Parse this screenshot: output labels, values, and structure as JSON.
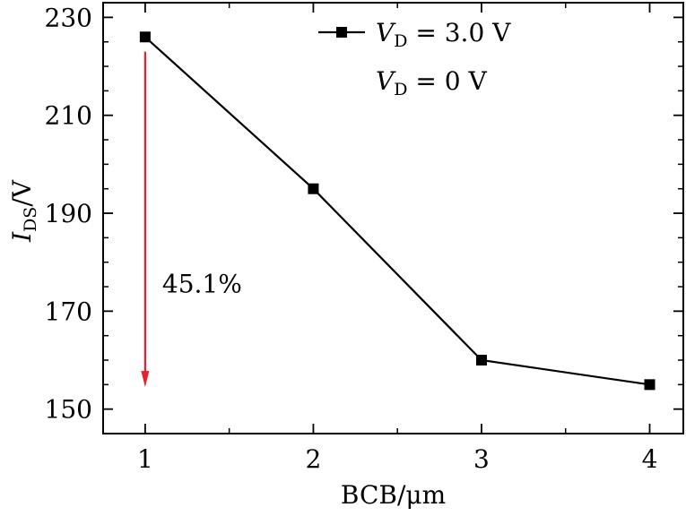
{
  "chart_data": {
    "type": "line",
    "x": [
      1,
      2,
      3,
      4
    ],
    "series": [
      {
        "name_var": "V",
        "name_sub": "D",
        "name_rest": " = 3.0 V",
        "values": [
          226,
          195,
          160,
          155
        ],
        "color": "#000000",
        "marker": "square"
      }
    ],
    "legend_second": {
      "var": "V",
      "sub": "D",
      "rest": " = 0 V"
    },
    "xlabel": "BCB/μm",
    "ylabel": {
      "var": "I",
      "sub": "DS",
      "rest": "/V"
    },
    "xlim": [
      0.75,
      4.2
    ],
    "ylim": [
      145,
      233
    ],
    "xticks": [
      "1",
      "2",
      "3",
      "4"
    ],
    "yticks": [
      "150",
      "170",
      "190",
      "210",
      "230"
    ],
    "annotation": {
      "text": "45.1%",
      "arrow_color": "#e8212d",
      "arrow_x": 1,
      "arrow_from_y": 223,
      "arrow_to_y": 154.5
    },
    "grid": false,
    "legend_position": "top-right"
  }
}
